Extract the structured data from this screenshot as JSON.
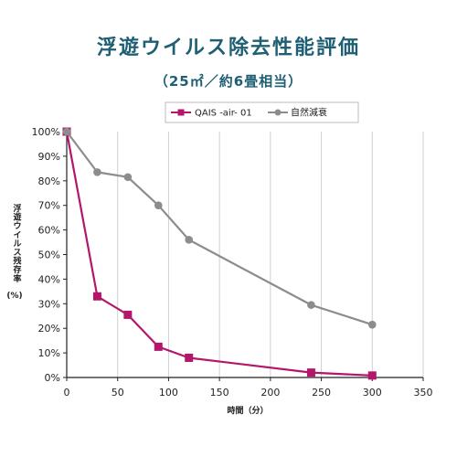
{
  "chart_data": {
    "type": "line",
    "title": "浮遊ウイルス除去性能評価",
    "subtitle": "（25㎡／約6畳相当）",
    "xlabel": "時間（分）",
    "ylabel": "浮遊ウイルス残存率",
    "ylabel_unit": "(%)",
    "xlim": [
      0,
      350
    ],
    "ylim": [
      0,
      100
    ],
    "x_ticks": [
      0,
      50,
      100,
      150,
      200,
      250,
      300,
      350
    ],
    "y_ticks": [
      0,
      10,
      20,
      30,
      40,
      50,
      60,
      70,
      80,
      90,
      100
    ],
    "x_tick_labels": [
      "0",
      "50",
      "100",
      "150",
      "200",
      "250",
      "300",
      "350"
    ],
    "y_tick_labels": [
      "0%",
      "10%",
      "20%",
      "30%",
      "40%",
      "50%",
      "60%",
      "70%",
      "80%",
      "90%",
      "100%"
    ],
    "grid": "vertical",
    "legend_position": "top-center",
    "series": [
      {
        "name": "QAIS -air- 01",
        "color": "#b3166b",
        "marker": "square",
        "x": [
          0,
          30,
          60,
          90,
          120,
          240,
          300
        ],
        "y": [
          100,
          33,
          25.5,
          12.5,
          8,
          2,
          0.8
        ]
      },
      {
        "name": "自然減衰",
        "color": "#8c8c8c",
        "marker": "circle",
        "x": [
          0,
          30,
          60,
          90,
          120,
          240,
          300
        ],
        "y": [
          100,
          83.5,
          81.5,
          70,
          56,
          29.5,
          21.5
        ]
      }
    ]
  },
  "colors": {
    "title": "#1f5f73",
    "axis": "#222222",
    "grid": "#d0d0d0"
  }
}
